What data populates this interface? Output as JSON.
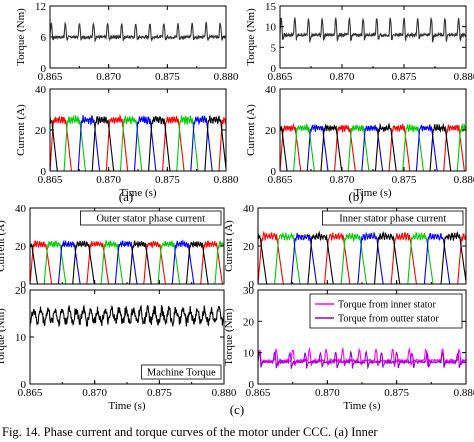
{
  "caption": "Fig. 14.   Phase current and torque curves of the motor under CCC. (a) Inner",
  "subfigure_labels": [
    "(a)",
    "(b)",
    "(c)"
  ],
  "chart_data": [
    {
      "id": "a-torque",
      "type": "line",
      "xlabel": "",
      "ylabel": "Torque (Nm)",
      "xlim": [
        0.865,
        0.88
      ],
      "ylim": [
        0,
        12
      ],
      "xticks": [
        "0.865",
        "0.870",
        "0.875",
        "0.880"
      ],
      "yticks": [
        "0",
        "6",
        "12"
      ],
      "show_x_labels": true,
      "series": [
        {
          "color": "#333333",
          "values": {
            "gen": "spiky",
            "base": 6.0,
            "peak": 8.6,
            "dip": 5.4,
            "period": 0.0012,
            "noise": 0.25
          }
        }
      ]
    },
    {
      "id": "a-current",
      "type": "line",
      "xlabel": "Time (s)",
      "ylabel": "Current (A)",
      "xlim": [
        0.865,
        0.88
      ],
      "ylim": [
        0,
        40
      ],
      "xticks": [
        "0.865",
        "0.870",
        "0.875",
        "0.880"
      ],
      "yticks": [
        "0",
        "20",
        "40"
      ],
      "show_x_labels": true,
      "series": [
        {
          "color": "#ff0000",
          "values": {
            "gen": "phase",
            "amp": 25,
            "period": 0.0048,
            "offset": 0.0
          }
        },
        {
          "color": "#00cc00",
          "values": {
            "gen": "phase",
            "amp": 25,
            "period": 0.0048,
            "offset": 0.0012
          }
        },
        {
          "color": "#0000ff",
          "values": {
            "gen": "phase",
            "amp": 25,
            "period": 0.0048,
            "offset": 0.0024
          }
        },
        {
          "color": "#000000",
          "values": {
            "gen": "phase",
            "amp": 25,
            "period": 0.0048,
            "offset": 0.0036
          }
        }
      ]
    },
    {
      "id": "b-torque",
      "type": "line",
      "xlabel": "",
      "ylabel": "Torque (Nm)",
      "xlim": [
        0.865,
        0.88
      ],
      "ylim": [
        0,
        15
      ],
      "xticks": [
        "0.865",
        "0.870",
        "0.875",
        "0.880"
      ],
      "yticks": [
        "0",
        "5",
        "10",
        "15"
      ],
      "show_x_labels": true,
      "series": [
        {
          "color": "#333333",
          "values": {
            "gen": "spiky",
            "base": 8.0,
            "peak": 12.0,
            "dip": 6.5,
            "period": 0.0011,
            "noise": 0.35
          }
        }
      ]
    },
    {
      "id": "b-current",
      "type": "line",
      "xlabel": "Time (s)",
      "ylabel": "Current (A)",
      "xlim": [
        0.865,
        0.88
      ],
      "ylim": [
        0,
        40
      ],
      "xticks": [
        "0.865",
        "0.870",
        "0.875",
        "0.880"
      ],
      "yticks": [
        "0",
        "20",
        "40"
      ],
      "show_x_labels": true,
      "series": [
        {
          "color": "#ff0000",
          "values": {
            "gen": "phase",
            "amp": 21,
            "period": 0.0044,
            "offset": 0.0
          }
        },
        {
          "color": "#00cc00",
          "values": {
            "gen": "phase",
            "amp": 21,
            "period": 0.0044,
            "offset": 0.0011
          }
        },
        {
          "color": "#0000ff",
          "values": {
            "gen": "phase",
            "amp": 21,
            "period": 0.0044,
            "offset": 0.0022
          }
        },
        {
          "color": "#000000",
          "values": {
            "gen": "phase",
            "amp": 21,
            "period": 0.0044,
            "offset": 0.0033
          }
        }
      ]
    },
    {
      "id": "c-outer-current",
      "type": "line",
      "xlabel": "",
      "ylabel": "Current (A)",
      "xlim": [
        0.865,
        0.88
      ],
      "ylim": [
        0,
        40
      ],
      "xticks": [
        "0.865",
        "0.870",
        "0.875",
        "0.880"
      ],
      "yticks": [
        "0",
        "20",
        "40"
      ],
      "show_x_labels": false,
      "annotation": "Outer stator phase current",
      "series": [
        {
          "color": "#ff0000",
          "values": {
            "gen": "phase",
            "amp": 21,
            "period": 0.0044,
            "offset": 0.0
          }
        },
        {
          "color": "#00cc00",
          "values": {
            "gen": "phase",
            "amp": 21,
            "period": 0.0044,
            "offset": 0.0011
          }
        },
        {
          "color": "#0000ff",
          "values": {
            "gen": "phase",
            "amp": 21,
            "period": 0.0044,
            "offset": 0.0022
          }
        },
        {
          "color": "#000000",
          "values": {
            "gen": "phase",
            "amp": 21,
            "period": 0.0044,
            "offset": 0.0033
          }
        }
      ]
    },
    {
      "id": "c-torque",
      "type": "line",
      "xlabel": "Time (s)",
      "ylabel": "Torque (Nm)",
      "xlim": [
        0.865,
        0.88
      ],
      "ylim": [
        0,
        20
      ],
      "xticks": [
        "0.865",
        "0.870",
        "0.875",
        "0.880"
      ],
      "yticks": [
        "0",
        "10",
        "20"
      ],
      "show_x_labels": true,
      "annotation": "Machine Torque",
      "series": [
        {
          "color": "#000000",
          "values": {
            "gen": "noise",
            "base": 14.5,
            "amp": 2.2,
            "period": 0.00055
          }
        }
      ]
    },
    {
      "id": "c-inner-current",
      "type": "line",
      "xlabel": "",
      "ylabel": "Current (A)",
      "xlim": [
        0.865,
        0.88
      ],
      "ylim": [
        0,
        40
      ],
      "xticks": [
        "0.865",
        "0.870",
        "0.875",
        "0.880"
      ],
      "yticks": [
        "0",
        "20",
        "40"
      ],
      "show_x_labels": false,
      "annotation": "Inner stator phase current",
      "series": [
        {
          "color": "#ff0000",
          "values": {
            "gen": "phase",
            "amp": 25,
            "period": 0.0048,
            "offset": 0.0
          }
        },
        {
          "color": "#00cc00",
          "values": {
            "gen": "phase",
            "amp": 25,
            "period": 0.0048,
            "offset": 0.0012
          }
        },
        {
          "color": "#0000ff",
          "values": {
            "gen": "phase",
            "amp": 25,
            "period": 0.0048,
            "offset": 0.0024
          }
        },
        {
          "color": "#000000",
          "values": {
            "gen": "phase",
            "amp": 25,
            "period": 0.0048,
            "offset": 0.0036
          }
        }
      ]
    },
    {
      "id": "c-inner-outer-torque",
      "type": "line",
      "xlabel": "Time (s)",
      "ylabel": "Torque (Nm)",
      "xlim": [
        0.865,
        0.88
      ],
      "ylim": [
        0,
        30
      ],
      "xticks": [
        "0.865",
        "0.870",
        "0.875",
        "0.880"
      ],
      "yticks": [
        "0",
        "10",
        "20",
        "30"
      ],
      "show_x_labels": true,
      "legend": "top-right",
      "series": [
        {
          "name": "Torque from inner stator",
          "color": "#ff00ff",
          "values": {
            "gen": "spiky",
            "base": 7.5,
            "peak": 11,
            "dip": 5.5,
            "period": 0.0012,
            "noise": 0.3
          }
        },
        {
          "name": "Torque from outter stator",
          "color": "#9900cc",
          "values": {
            "gen": "spiky",
            "base": 7.0,
            "peak": 10,
            "dip": 5.0,
            "period": 0.0011,
            "noise": 0.3
          }
        }
      ]
    }
  ]
}
